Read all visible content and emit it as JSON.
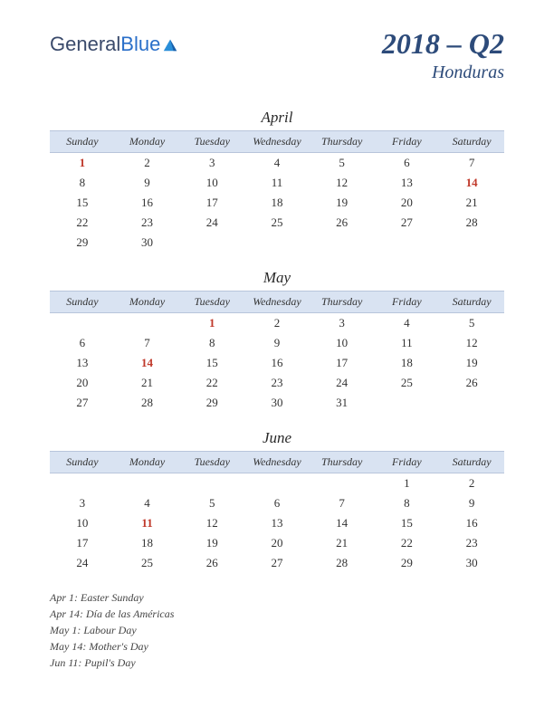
{
  "logo": {
    "part1": "General",
    "part2": "Blue"
  },
  "header": {
    "title": "2018 – Q2",
    "subtitle": "Honduras"
  },
  "day_headers": [
    "Sunday",
    "Monday",
    "Tuesday",
    "Wednesday",
    "Thursday",
    "Friday",
    "Saturday"
  ],
  "colors": {
    "header_bg": "#d9e3f2",
    "title_color": "#2d4b7a",
    "holiday_color": "#c0392b",
    "text_color": "#333333",
    "background": "#ffffff"
  },
  "months": [
    {
      "name": "April",
      "weeks": [
        [
          {
            "d": "1",
            "h": true
          },
          {
            "d": "2"
          },
          {
            "d": "3"
          },
          {
            "d": "4"
          },
          {
            "d": "5"
          },
          {
            "d": "6"
          },
          {
            "d": "7"
          }
        ],
        [
          {
            "d": "8"
          },
          {
            "d": "9"
          },
          {
            "d": "10"
          },
          {
            "d": "11"
          },
          {
            "d": "12"
          },
          {
            "d": "13"
          },
          {
            "d": "14",
            "h": true
          }
        ],
        [
          {
            "d": "15"
          },
          {
            "d": "16"
          },
          {
            "d": "17"
          },
          {
            "d": "18"
          },
          {
            "d": "19"
          },
          {
            "d": "20"
          },
          {
            "d": "21"
          }
        ],
        [
          {
            "d": "22"
          },
          {
            "d": "23"
          },
          {
            "d": "24"
          },
          {
            "d": "25"
          },
          {
            "d": "26"
          },
          {
            "d": "27"
          },
          {
            "d": "28"
          }
        ],
        [
          {
            "d": "29"
          },
          {
            "d": "30"
          },
          {
            "d": ""
          },
          {
            "d": ""
          },
          {
            "d": ""
          },
          {
            "d": ""
          },
          {
            "d": ""
          }
        ]
      ]
    },
    {
      "name": "May",
      "weeks": [
        [
          {
            "d": ""
          },
          {
            "d": ""
          },
          {
            "d": "1",
            "h": true
          },
          {
            "d": "2"
          },
          {
            "d": "3"
          },
          {
            "d": "4"
          },
          {
            "d": "5"
          }
        ],
        [
          {
            "d": "6"
          },
          {
            "d": "7"
          },
          {
            "d": "8"
          },
          {
            "d": "9"
          },
          {
            "d": "10"
          },
          {
            "d": "11"
          },
          {
            "d": "12"
          }
        ],
        [
          {
            "d": "13"
          },
          {
            "d": "14",
            "h": true
          },
          {
            "d": "15"
          },
          {
            "d": "16"
          },
          {
            "d": "17"
          },
          {
            "d": "18"
          },
          {
            "d": "19"
          }
        ],
        [
          {
            "d": "20"
          },
          {
            "d": "21"
          },
          {
            "d": "22"
          },
          {
            "d": "23"
          },
          {
            "d": "24"
          },
          {
            "d": "25"
          },
          {
            "d": "26"
          }
        ],
        [
          {
            "d": "27"
          },
          {
            "d": "28"
          },
          {
            "d": "29"
          },
          {
            "d": "30"
          },
          {
            "d": "31"
          },
          {
            "d": ""
          },
          {
            "d": ""
          }
        ]
      ]
    },
    {
      "name": "June",
      "weeks": [
        [
          {
            "d": ""
          },
          {
            "d": ""
          },
          {
            "d": ""
          },
          {
            "d": ""
          },
          {
            "d": ""
          },
          {
            "d": "1"
          },
          {
            "d": "2"
          }
        ],
        [
          {
            "d": "3"
          },
          {
            "d": "4"
          },
          {
            "d": "5"
          },
          {
            "d": "6"
          },
          {
            "d": "7"
          },
          {
            "d": "8"
          },
          {
            "d": "9"
          }
        ],
        [
          {
            "d": "10"
          },
          {
            "d": "11",
            "h": true
          },
          {
            "d": "12"
          },
          {
            "d": "13"
          },
          {
            "d": "14"
          },
          {
            "d": "15"
          },
          {
            "d": "16"
          }
        ],
        [
          {
            "d": "17"
          },
          {
            "d": "18"
          },
          {
            "d": "19"
          },
          {
            "d": "20"
          },
          {
            "d": "21"
          },
          {
            "d": "22"
          },
          {
            "d": "23"
          }
        ],
        [
          {
            "d": "24"
          },
          {
            "d": "25"
          },
          {
            "d": "26"
          },
          {
            "d": "27"
          },
          {
            "d": "28"
          },
          {
            "d": "29"
          },
          {
            "d": "30"
          }
        ]
      ]
    }
  ],
  "holiday_list": [
    "Apr 1: Easter Sunday",
    "Apr 14: Día de las Américas",
    "May 1: Labour Day",
    "May 14: Mother's Day",
    "Jun 11: Pupil's Day"
  ]
}
